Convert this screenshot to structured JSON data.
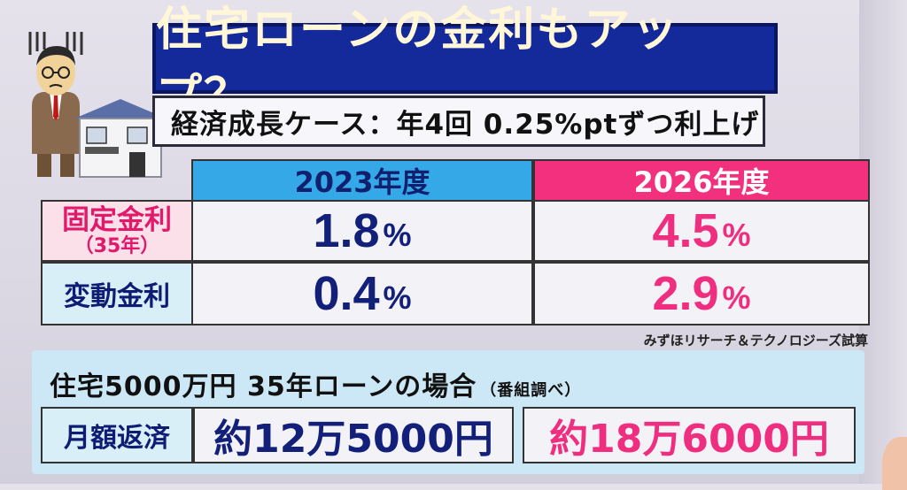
{
  "title": "住宅ローンの金利もアップ？",
  "subtitle": "経済成長ケース：年4回 0.25%ptずつ利上げ",
  "table": {
    "columns": [
      "2023年度",
      "2026年度"
    ],
    "rows": [
      {
        "label": "固定金利",
        "sublabel": "（35年）",
        "values": [
          "1.8",
          "4.5"
        ],
        "unit": "%"
      },
      {
        "label": "変動金利",
        "values": [
          "0.4",
          "2.9"
        ],
        "unit": "%"
      }
    ]
  },
  "source": "みずほリサーチ＆テクノロジーズ試算",
  "case": {
    "text": "住宅5000万円 35年ローンの場合",
    "note": "（番組調べ）"
  },
  "monthly": {
    "label": "月額返済",
    "values": [
      "約12万5000円",
      "約18万6000円"
    ]
  },
  "colors": {
    "title_bg": "#14299a",
    "header_2023": "#35a8e8",
    "header_2026": "#f2307e",
    "value_blue": "#12207a",
    "value_pink": "#ef2e80"
  },
  "icons": {
    "illustration": "worried-man-and-house-icon"
  }
}
